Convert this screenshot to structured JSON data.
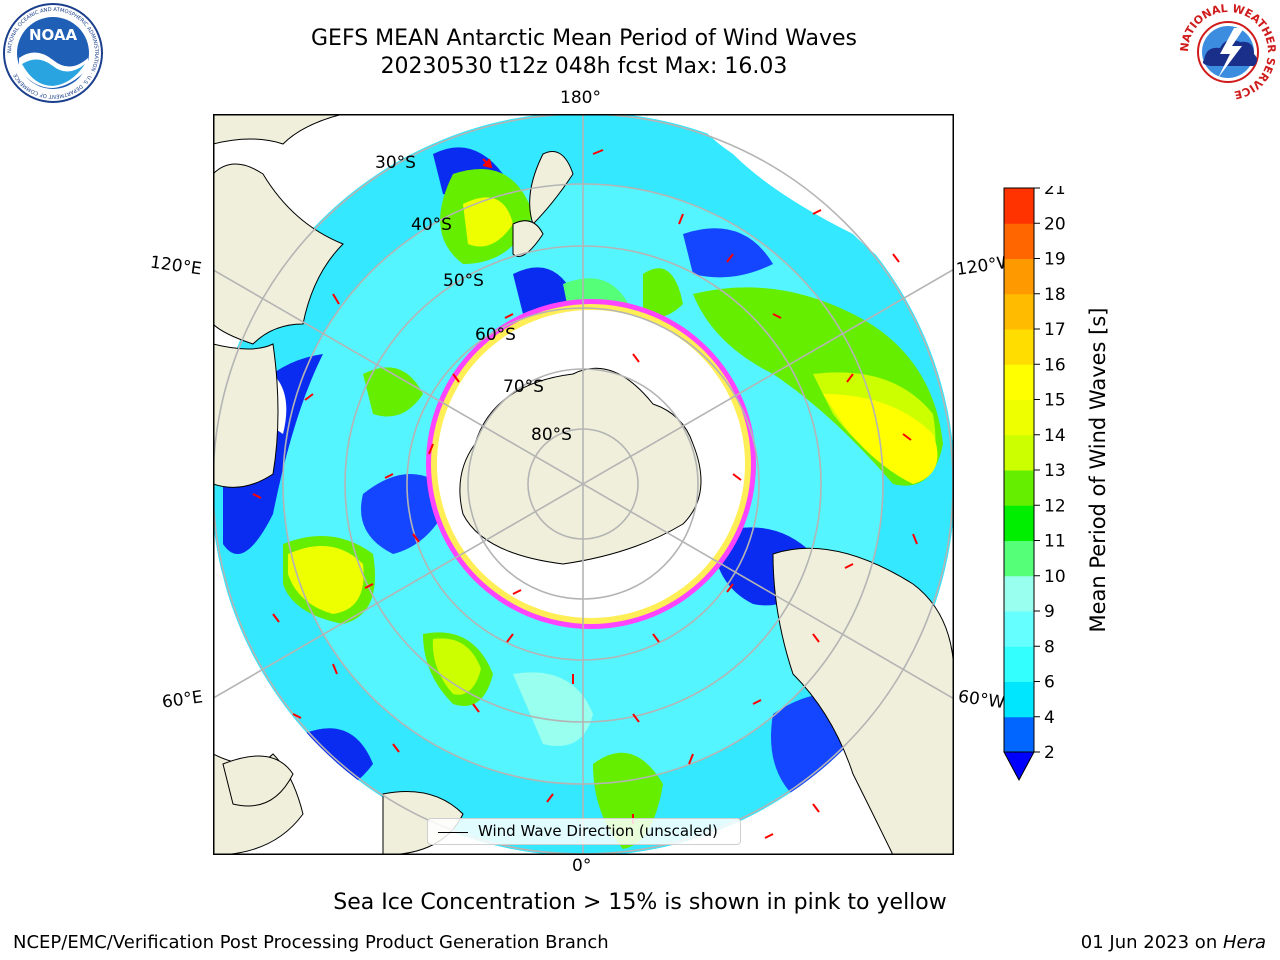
{
  "title": {
    "line1": "GEFS MEAN Antarctic Mean Period of Wind Waves",
    "line2": "20230530 t12z 048h fcst   Max: 16.03"
  },
  "logos": {
    "noaa": {
      "text": "NOAA",
      "ring": "NATIONAL OCEANIC AND ATMOSPHERIC ADMINISTRATION · U.S. DEPARTMENT OF COMMERCE"
    },
    "nws": {
      "ring": "NATIONAL WEATHER SERVICE"
    }
  },
  "map": {
    "lon_labels": {
      "top": "180°",
      "bottom": "0°",
      "upper_left": "120°E",
      "upper_right": "120°W",
      "lower_left": "60°E",
      "lower_right": "60°W"
    },
    "lat_labels": [
      "30°S",
      "40°S",
      "50°S",
      "60°S",
      "70°S",
      "80°S"
    ],
    "land_color": "#efefdc",
    "ice_colors": [
      "#ff00ff",
      "#ffd700"
    ]
  },
  "colorbar": {
    "label": "Mean Period of Wind Waves [s]",
    "ticks": [
      "2",
      "4",
      "6",
      "8",
      "9",
      "10",
      "11",
      "12",
      "13",
      "14",
      "15",
      "16",
      "17",
      "18",
      "19",
      "20",
      "21"
    ],
    "colors": [
      "#0066ff",
      "#00e6ff",
      "#33ffff",
      "#66ffff",
      "#99ffee",
      "#55ff77",
      "#00ee00",
      "#66ee00",
      "#ccff00",
      "#eeff00",
      "#ffff00",
      "#ffdd00",
      "#ffbb00",
      "#ff9900",
      "#ff6600",
      "#ff3300",
      "#ff0000"
    ],
    "under_color": "#0000ff"
  },
  "legend": {
    "label": "Wind Wave Direction (unscaled)"
  },
  "sea_ice_note": "Sea Ice Concentration > 15% is shown in pink to yellow",
  "footer": {
    "left": "NCEP/EMC/Verification Post Processing Product Generation Branch",
    "right_date": "01 Jun 2023 on ",
    "right_host": "Hera"
  }
}
